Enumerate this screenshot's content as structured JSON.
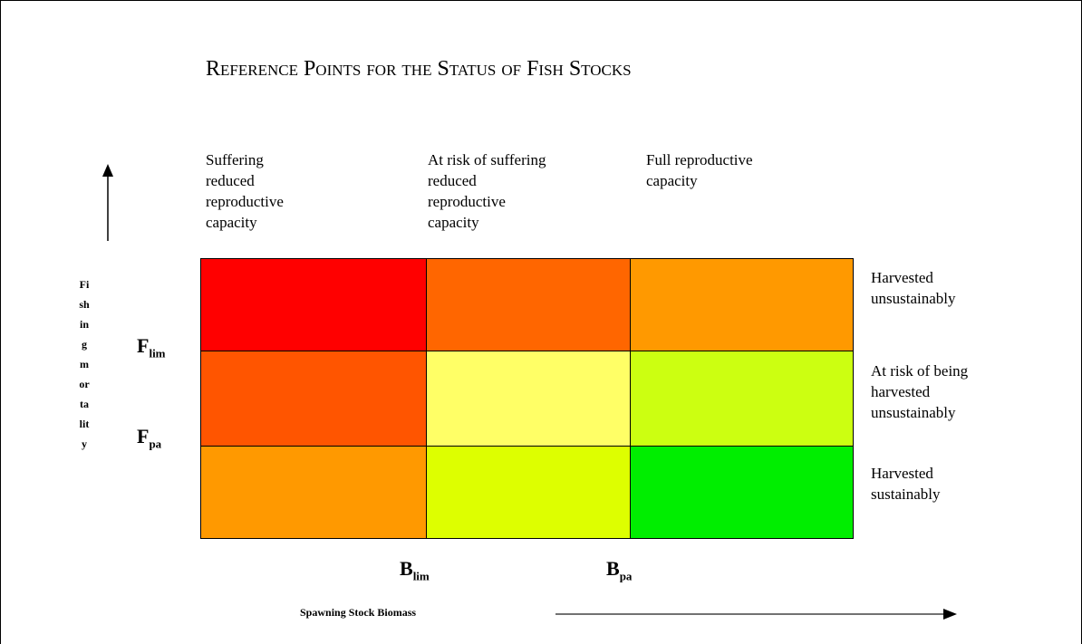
{
  "title": "Reference Points for the Status of Fish Stocks",
  "columns": [
    [
      "Suffering",
      "reduced",
      "reproductive",
      "capacity"
    ],
    [
      "At risk of suffering",
      "reduced",
      "reproductive",
      "capacity"
    ],
    [
      "Full reproductive",
      "capacity"
    ]
  ],
  "rows": [
    [
      "Harvested",
      "unsustainably"
    ],
    [
      "At risk of being",
      "harvested",
      "unsustainably"
    ],
    [
      "Harvested",
      "sustainably"
    ]
  ],
  "y_axis_label": "Fishing mortality",
  "x_axis_label": "Spawning Stock Biomass",
  "f_points": [
    {
      "symbol": "F",
      "subscript": "lim"
    },
    {
      "symbol": "F",
      "subscript": "pa"
    }
  ],
  "b_points": [
    {
      "symbol": "B",
      "subscript": "lim"
    },
    {
      "symbol": "B",
      "subscript": "pa"
    }
  ]
}
